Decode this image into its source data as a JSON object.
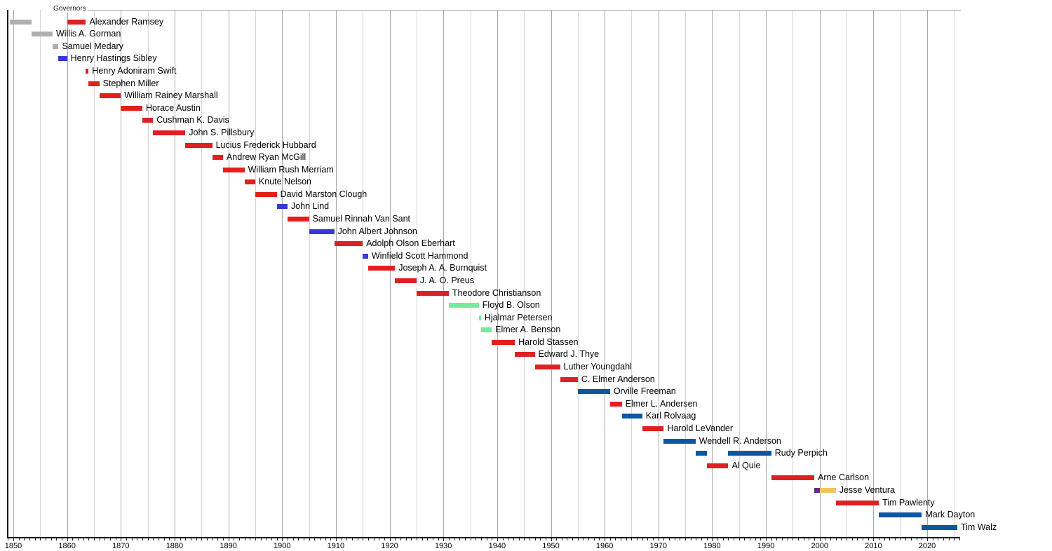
{
  "chart_data": {
    "type": "timeline",
    "title": "Governors",
    "xlabel": "",
    "xlim": [
      1849,
      2026
    ],
    "grid": "on",
    "minor_grid_step_years": 5,
    "major_grid_step_years": 10,
    "axis_tick_step_years": 1,
    "axis_labels": [
      "1850",
      "1860",
      "1870",
      "1880",
      "1890",
      "1900",
      "1910",
      "1920",
      "1930",
      "1940",
      "1950",
      "1960",
      "1970",
      "1980",
      "1990",
      "2000",
      "2010",
      "2020"
    ],
    "axis_label_years": [
      1850,
      1860,
      1870,
      1880,
      1890,
      1900,
      1910,
      1920,
      1930,
      1940,
      1950,
      1960,
      1970,
      1980,
      1990,
      2000,
      2010,
      2020
    ],
    "party_colors": {
      "territorial": "#b0b0b0",
      "republican": "#df2020",
      "democratic": "#3838d8",
      "dfl": "#0b57a4",
      "farmer_labor": "#72ec9c",
      "reform": "#632a8f",
      "independence": "#f2c45c"
    },
    "rows": [
      {
        "name": "Alexander Ramsey",
        "segments": [
          {
            "from": 1849.4,
            "to": 1853.4,
            "party": "territorial"
          },
          {
            "from": 1860.0,
            "to": 1863.5,
            "party": "republican"
          }
        ]
      },
      {
        "name": "Willis A. Gorman",
        "segments": [
          {
            "from": 1853.4,
            "to": 1857.3,
            "party": "territorial"
          }
        ]
      },
      {
        "name": "Samuel Medary",
        "segments": [
          {
            "from": 1857.3,
            "to": 1858.4,
            "party": "territorial"
          }
        ]
      },
      {
        "name": "Henry Hastings Sibley",
        "segments": [
          {
            "from": 1858.4,
            "to": 1860.0,
            "party": "democratic"
          }
        ]
      },
      {
        "name": "Henry Adoniram Swift",
        "segments": [
          {
            "from": 1863.5,
            "to": 1864.0,
            "party": "republican"
          }
        ]
      },
      {
        "name": "Stephen Miller",
        "segments": [
          {
            "from": 1864.0,
            "to": 1866.0,
            "party": "republican"
          }
        ]
      },
      {
        "name": "William Rainey Marshall",
        "segments": [
          {
            "from": 1866.0,
            "to": 1870.0,
            "party": "republican"
          }
        ]
      },
      {
        "name": "Horace Austin",
        "segments": [
          {
            "from": 1870.0,
            "to": 1874.0,
            "party": "republican"
          }
        ]
      },
      {
        "name": "Cushman K. Davis",
        "segments": [
          {
            "from": 1874.0,
            "to": 1876.0,
            "party": "republican"
          }
        ]
      },
      {
        "name": "John S. Pillsbury",
        "segments": [
          {
            "from": 1876.0,
            "to": 1882.0,
            "party": "republican"
          }
        ]
      },
      {
        "name": "Lucius Frederick Hubbard",
        "segments": [
          {
            "from": 1882.0,
            "to": 1887.0,
            "party": "republican"
          }
        ]
      },
      {
        "name": "Andrew Ryan McGill",
        "segments": [
          {
            "from": 1887.0,
            "to": 1889.0,
            "party": "republican"
          }
        ]
      },
      {
        "name": "William Rush Merriam",
        "segments": [
          {
            "from": 1889.0,
            "to": 1893.0,
            "party": "republican"
          }
        ]
      },
      {
        "name": "Knute Nelson",
        "segments": [
          {
            "from": 1893.0,
            "to": 1895.0,
            "party": "republican"
          }
        ]
      },
      {
        "name": "David Marston Clough",
        "segments": [
          {
            "from": 1895.0,
            "to": 1899.0,
            "party": "republican"
          }
        ]
      },
      {
        "name": "John Lind",
        "segments": [
          {
            "from": 1899.0,
            "to": 1901.0,
            "party": "democratic"
          }
        ]
      },
      {
        "name": "Samuel Rinnah Van Sant",
        "segments": [
          {
            "from": 1901.0,
            "to": 1905.0,
            "party": "republican"
          }
        ]
      },
      {
        "name": "John Albert Johnson",
        "segments": [
          {
            "from": 1905.0,
            "to": 1909.7,
            "party": "democratic"
          }
        ]
      },
      {
        "name": "Adolph Olson Eberhart",
        "segments": [
          {
            "from": 1909.7,
            "to": 1915.0,
            "party": "republican"
          }
        ]
      },
      {
        "name": "Winfield Scott Hammond",
        "segments": [
          {
            "from": 1915.0,
            "to": 1916.0,
            "party": "democratic"
          }
        ]
      },
      {
        "name": "Joseph A. A. Burnquist",
        "segments": [
          {
            "from": 1916.0,
            "to": 1921.0,
            "party": "republican"
          }
        ]
      },
      {
        "name": "J. A. O. Preus",
        "segments": [
          {
            "from": 1921.0,
            "to": 1925.0,
            "party": "republican"
          }
        ]
      },
      {
        "name": "Theodore Christianson",
        "segments": [
          {
            "from": 1925.0,
            "to": 1931.0,
            "party": "republican"
          }
        ]
      },
      {
        "name": "Floyd B. Olson",
        "segments": [
          {
            "from": 1931.0,
            "to": 1936.6,
            "party": "farmer_labor"
          }
        ]
      },
      {
        "name": "Hjalmar Petersen",
        "segments": [
          {
            "from": 1936.6,
            "to": 1937.0,
            "party": "farmer_labor"
          }
        ]
      },
      {
        "name": "Elmer A. Benson",
        "segments": [
          {
            "from": 1937.0,
            "to": 1939.0,
            "party": "farmer_labor"
          }
        ]
      },
      {
        "name": "Harold Stassen",
        "segments": [
          {
            "from": 1939.0,
            "to": 1943.3,
            "party": "republican"
          }
        ]
      },
      {
        "name": "Edward J. Thye",
        "segments": [
          {
            "from": 1943.3,
            "to": 1947.0,
            "party": "republican"
          }
        ]
      },
      {
        "name": "Luther Youngdahl",
        "segments": [
          {
            "from": 1947.0,
            "to": 1951.7,
            "party": "republican"
          }
        ]
      },
      {
        "name": "C. Elmer Anderson",
        "segments": [
          {
            "from": 1951.7,
            "to": 1955.0,
            "party": "republican"
          }
        ]
      },
      {
        "name": "Orville Freeman",
        "segments": [
          {
            "from": 1955.0,
            "to": 1961.0,
            "party": "dfl"
          }
        ]
      },
      {
        "name": "Elmer L. Andersen",
        "segments": [
          {
            "from": 1961.0,
            "to": 1963.2,
            "party": "republican"
          }
        ]
      },
      {
        "name": "Karl Rolvaag",
        "segments": [
          {
            "from": 1963.2,
            "to": 1967.0,
            "party": "dfl"
          }
        ]
      },
      {
        "name": "Harold LeVander",
        "segments": [
          {
            "from": 1967.0,
            "to": 1971.0,
            "party": "republican"
          }
        ]
      },
      {
        "name": "Wendell R. Anderson",
        "segments": [
          {
            "from": 1971.0,
            "to": 1976.9,
            "party": "dfl"
          }
        ]
      },
      {
        "name": "Rudy Perpich",
        "segments": [
          {
            "from": 1976.9,
            "to": 1979.0,
            "party": "dfl"
          },
          {
            "from": 1983.0,
            "to": 1991.0,
            "party": "dfl"
          }
        ]
      },
      {
        "name": "Al Quie",
        "segments": [
          {
            "from": 1979.0,
            "to": 1983.0,
            "party": "republican"
          }
        ]
      },
      {
        "name": "Arne Carlson",
        "segments": [
          {
            "from": 1991.0,
            "to": 1999.0,
            "party": "republican"
          }
        ]
      },
      {
        "name": "Jesse Ventura",
        "segments": [
          {
            "from": 1999.0,
            "to": 2000.0,
            "party": "reform"
          },
          {
            "from": 2000.0,
            "to": 2003.0,
            "party": "independence"
          }
        ]
      },
      {
        "name": "Tim Pawlenty",
        "segments": [
          {
            "from": 2003.0,
            "to": 2011.0,
            "party": "republican"
          }
        ]
      },
      {
        "name": "Mark Dayton",
        "segments": [
          {
            "from": 2011.0,
            "to": 2019.0,
            "party": "dfl"
          }
        ]
      },
      {
        "name": "Tim Walz",
        "segments": [
          {
            "from": 2019.0,
            "to": 2025.6,
            "party": "dfl"
          }
        ]
      }
    ]
  }
}
